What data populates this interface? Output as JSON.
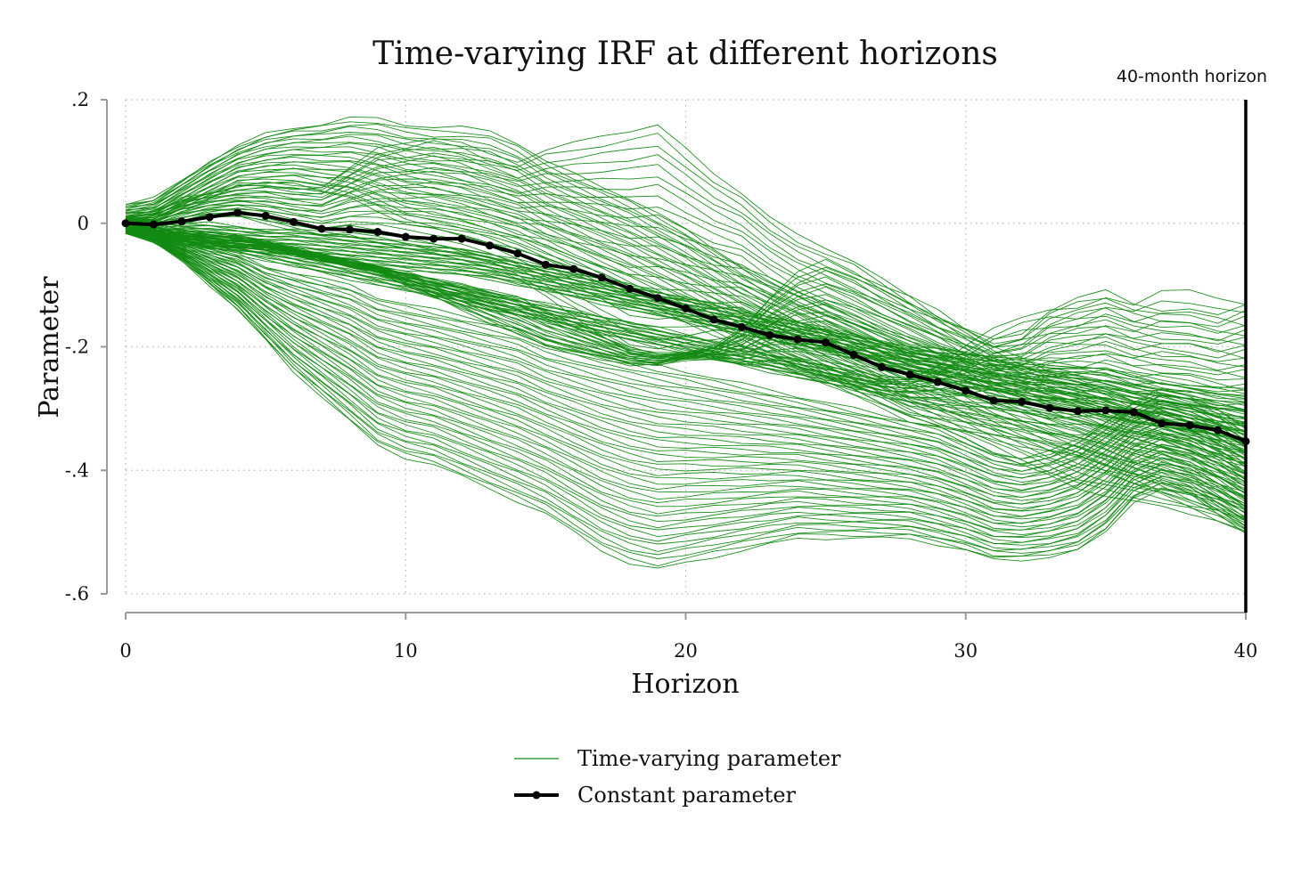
{
  "chart_data": {
    "type": "line",
    "title": "Time-varying IRF at different horizons",
    "xlabel": "Horizon",
    "ylabel": "Parameter",
    "xlim": [
      0,
      40
    ],
    "ylim": [
      -0.6,
      0.2
    ],
    "xticks": [
      0,
      10,
      20,
      30,
      40
    ],
    "xtick_labels": [
      "0",
      "10",
      "20",
      "30",
      "40"
    ],
    "yticks": [
      -0.6,
      -0.4,
      -0.2,
      0,
      0.2
    ],
    "ytick_labels": [
      "-.6",
      "-.4",
      "-.2",
      "0",
      ".2"
    ],
    "grid": true,
    "legend_position": "bottom",
    "annotation": {
      "text": "40-month horizon",
      "x": 40
    },
    "colors": {
      "time_varying": "#138b13",
      "constant": "#000000"
    },
    "series": [
      {
        "name": "Constant parameter",
        "style": "line-with-markers",
        "x": [
          0,
          1,
          2,
          3,
          4,
          5,
          6,
          7,
          8,
          9,
          10,
          11,
          12,
          13,
          14,
          15,
          16,
          17,
          18,
          19,
          20,
          21,
          22,
          23,
          24,
          25,
          26,
          27,
          28,
          29,
          30,
          31,
          32,
          33,
          34,
          35,
          36,
          37,
          38,
          39,
          40
        ],
        "values": [
          0.0,
          -0.002,
          0.003,
          0.01,
          0.017,
          0.012,
          0.002,
          -0.009,
          -0.01,
          -0.014,
          -0.022,
          -0.025,
          -0.025,
          -0.036,
          -0.049,
          -0.067,
          -0.074,
          -0.088,
          -0.106,
          -0.121,
          -0.138,
          -0.156,
          -0.168,
          -0.181,
          -0.188,
          -0.193,
          -0.213,
          -0.233,
          -0.245,
          -0.257,
          -0.271,
          -0.287,
          -0.289,
          -0.299,
          -0.304,
          -0.303,
          -0.306,
          -0.324,
          -0.327,
          -0.335,
          -0.353
        ]
      },
      {
        "name": "Time-varying parameter",
        "style": "family-of-lines",
        "x": [
          0,
          1,
          2,
          3,
          4,
          5,
          6,
          7,
          8,
          9,
          10,
          11,
          12,
          13,
          14,
          15,
          16,
          17,
          18,
          19,
          20,
          21,
          22,
          23,
          24,
          25,
          26,
          27,
          28,
          29,
          30,
          31,
          32,
          33,
          34,
          35,
          36,
          37,
          38,
          39,
          40
        ],
        "bundles": [
          {
            "count": 26,
            "upper": [
              0.03,
              0.04,
              0.07,
              0.1,
              0.125,
              0.145,
              0.155,
              0.16,
              0.17,
              0.17,
              0.16,
              0.155,
              0.155,
              0.15,
              0.13,
              0.1,
              0.08,
              0.06,
              0.04,
              0.015,
              -0.01,
              -0.04,
              -0.07,
              -0.09,
              -0.11,
              -0.13,
              -0.15,
              -0.17,
              -0.19,
              -0.2,
              -0.21,
              -0.22,
              -0.23,
              -0.24,
              -0.25,
              -0.26,
              -0.27,
              -0.27,
              -0.28,
              -0.29,
              -0.3
            ],
            "lower": [
              0.0,
              0.0,
              0.02,
              0.04,
              0.06,
              0.06,
              0.06,
              0.05,
              0.04,
              0.02,
              0.0,
              -0.01,
              -0.02,
              -0.03,
              -0.04,
              -0.06,
              -0.08,
              -0.1,
              -0.12,
              -0.14,
              -0.16,
              -0.18,
              -0.2,
              -0.22,
              -0.24,
              -0.26,
              -0.28,
              -0.3,
              -0.32,
              -0.33,
              -0.34,
              -0.35,
              -0.36,
              -0.37,
              -0.38,
              -0.4,
              -0.42,
              -0.44,
              -0.46,
              -0.48,
              -0.5
            ]
          },
          {
            "count": 24,
            "upper": [
              0.01,
              0.02,
              0.04,
              0.05,
              0.06,
              0.065,
              0.06,
              0.06,
              0.09,
              0.12,
              0.13,
              0.14,
              0.13,
              0.11,
              0.1,
              0.12,
              0.13,
              0.14,
              0.15,
              0.16,
              0.12,
              0.08,
              0.05,
              0.01,
              -0.02,
              -0.04,
              -0.06,
              -0.09,
              -0.12,
              -0.15,
              -0.17,
              -0.19,
              -0.18,
              -0.14,
              -0.12,
              -0.11,
              -0.13,
              -0.14,
              -0.14,
              -0.15,
              -0.13
            ],
            "lower": [
              0.0,
              -0.01,
              0.0,
              0.01,
              0.01,
              0.0,
              -0.01,
              -0.02,
              -0.02,
              -0.03,
              -0.04,
              -0.05,
              -0.06,
              -0.07,
              -0.09,
              -0.12,
              -0.15,
              -0.18,
              -0.21,
              -0.22,
              -0.21,
              -0.2,
              -0.19,
              -0.21,
              -0.23,
              -0.25,
              -0.26,
              -0.27,
              -0.27,
              -0.27,
              -0.28,
              -0.29,
              -0.3,
              -0.31,
              -0.32,
              -0.33,
              -0.34,
              -0.35,
              -0.36,
              -0.37,
              -0.38
            ]
          },
          {
            "count": 22,
            "upper": [
              0.0,
              -0.01,
              -0.01,
              -0.015,
              -0.02,
              -0.03,
              -0.04,
              -0.05,
              -0.06,
              -0.07,
              -0.08,
              -0.09,
              -0.1,
              -0.11,
              -0.12,
              -0.14,
              -0.16,
              -0.18,
              -0.2,
              -0.21,
              -0.21,
              -0.2,
              -0.17,
              -0.12,
              -0.08,
              -0.06,
              -0.08,
              -0.1,
              -0.12,
              -0.14,
              -0.17,
              -0.2,
              -0.22,
              -0.24,
              -0.25,
              -0.27,
              -0.29,
              -0.3,
              -0.32,
              -0.34,
              -0.36
            ],
            "lower": [
              -0.01,
              -0.02,
              -0.03,
              -0.04,
              -0.04,
              -0.04,
              -0.05,
              -0.06,
              -0.07,
              -0.08,
              -0.1,
              -0.12,
              -0.14,
              -0.16,
              -0.18,
              -0.2,
              -0.21,
              -0.22,
              -0.23,
              -0.23,
              -0.22,
              -0.22,
              -0.23,
              -0.23,
              -0.24,
              -0.25,
              -0.27,
              -0.29,
              -0.31,
              -0.33,
              -0.35,
              -0.37,
              -0.39,
              -0.41,
              -0.43,
              -0.44,
              -0.45,
              -0.46,
              -0.47,
              -0.48,
              -0.5
            ]
          },
          {
            "count": 22,
            "upper": [
              0.01,
              0.005,
              0.0,
              0.0,
              -0.005,
              -0.01,
              -0.01,
              -0.015,
              -0.02,
              -0.025,
              -0.03,
              -0.035,
              -0.04,
              -0.05,
              -0.06,
              -0.07,
              -0.08,
              -0.09,
              -0.1,
              -0.11,
              -0.12,
              -0.13,
              -0.14,
              -0.15,
              -0.16,
              -0.17,
              -0.18,
              -0.19,
              -0.2,
              -0.205,
              -0.21,
              -0.215,
              -0.22,
              -0.225,
              -0.23,
              -0.235,
              -0.245,
              -0.255,
              -0.26,
              -0.265,
              -0.27
            ],
            "lower": [
              -0.01,
              -0.02,
              -0.03,
              -0.04,
              -0.045,
              -0.05,
              -0.055,
              -0.06,
              -0.065,
              -0.07,
              -0.075,
              -0.08,
              -0.085,
              -0.09,
              -0.1,
              -0.11,
              -0.12,
              -0.13,
              -0.14,
              -0.15,
              -0.16,
              -0.17,
              -0.18,
              -0.19,
              -0.2,
              -0.21,
              -0.22,
              -0.23,
              -0.24,
              -0.25,
              -0.26,
              -0.27,
              -0.28,
              -0.29,
              -0.3,
              -0.31,
              -0.32,
              -0.33,
              -0.34,
              -0.35,
              -0.36
            ]
          },
          {
            "count": 44,
            "upper": [
              -0.01,
              -0.02,
              -0.03,
              -0.04,
              -0.05,
              -0.07,
              -0.08,
              -0.09,
              -0.1,
              -0.12,
              -0.13,
              -0.14,
              -0.15,
              -0.16,
              -0.17,
              -0.19,
              -0.2,
              -0.21,
              -0.22,
              -0.23,
              -0.24,
              -0.25,
              -0.26,
              -0.27,
              -0.28,
              -0.29,
              -0.3,
              -0.31,
              -0.32,
              -0.33,
              -0.35,
              -0.37,
              -0.38,
              -0.37,
              -0.35,
              -0.32,
              -0.29,
              -0.27,
              -0.28,
              -0.3,
              -0.33
            ],
            "lower": [
              -0.015,
              -0.03,
              -0.06,
              -0.1,
              -0.14,
              -0.19,
              -0.24,
              -0.28,
              -0.32,
              -0.36,
              -0.38,
              -0.39,
              -0.41,
              -0.43,
              -0.45,
              -0.47,
              -0.5,
              -0.53,
              -0.55,
              -0.56,
              -0.55,
              -0.54,
              -0.53,
              -0.52,
              -0.51,
              -0.51,
              -0.51,
              -0.51,
              -0.51,
              -0.52,
              -0.53,
              -0.545,
              -0.545,
              -0.54,
              -0.53,
              -0.5,
              -0.45,
              -0.43,
              -0.44,
              -0.47,
              -0.5
            ]
          },
          {
            "count": 16,
            "upper": [
              -0.005,
              -0.01,
              -0.015,
              -0.02,
              -0.025,
              -0.03,
              -0.04,
              -0.05,
              -0.06,
              -0.07,
              -0.08,
              -0.09,
              -0.1,
              -0.11,
              -0.12,
              -0.13,
              -0.14,
              -0.15,
              -0.16,
              -0.17,
              -0.18,
              -0.19,
              -0.2,
              -0.21,
              -0.22,
              -0.23,
              -0.24,
              -0.25,
              -0.25,
              -0.23,
              -0.2,
              -0.17,
              -0.15,
              -0.14,
              -0.14,
              -0.12,
              -0.13,
              -0.11,
              -0.11,
              -0.12,
              -0.13
            ],
            "lower": [
              -0.01,
              -0.02,
              -0.03,
              -0.04,
              -0.05,
              -0.06,
              -0.07,
              -0.08,
              -0.09,
              -0.1,
              -0.11,
              -0.12,
              -0.13,
              -0.14,
              -0.15,
              -0.16,
              -0.17,
              -0.18,
              -0.19,
              -0.2,
              -0.21,
              -0.22,
              -0.23,
              -0.24,
              -0.25,
              -0.26,
              -0.27,
              -0.28,
              -0.29,
              -0.3,
              -0.31,
              -0.32,
              -0.33,
              -0.34,
              -0.34,
              -0.34,
              -0.35,
              -0.36,
              -0.37,
              -0.38,
              -0.39
            ]
          }
        ]
      }
    ]
  },
  "legend": {
    "time_varying_label": "Time-varying parameter",
    "constant_label": "Constant parameter"
  }
}
